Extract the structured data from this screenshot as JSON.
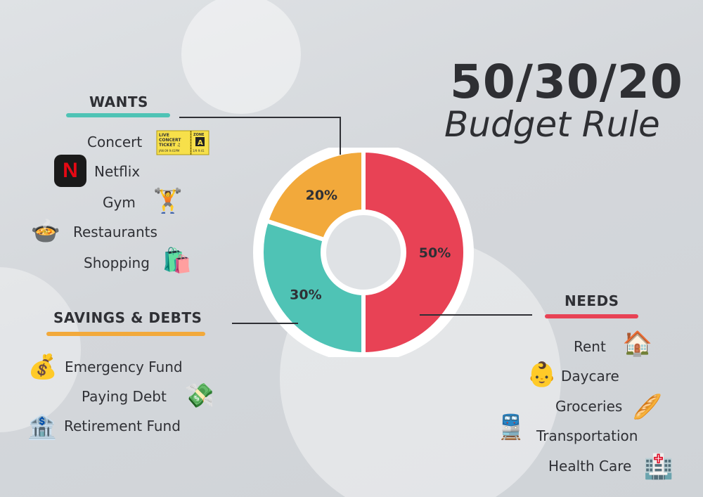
{
  "title": {
    "line1": "50/30/20",
    "line2": "Budget Rule"
  },
  "chart_data": {
    "type": "pie",
    "categories": [
      "NEEDS",
      "WANTS",
      "SAVINGS & DEBTS"
    ],
    "values": [
      50,
      30,
      20
    ],
    "labels": [
      "50%",
      "30%",
      "20%"
    ],
    "colors": [
      "#e84255",
      "#4fc3b5",
      "#f2a93b"
    ]
  },
  "wants": {
    "heading": "WANTS",
    "color": "#4fc3b5",
    "items": [
      "Concert",
      "Netflix",
      "Gym",
      "Restaurants",
      "Shopping"
    ],
    "ticket": {
      "l1": "LIVE",
      "l2": "CONCERT",
      "l3": "TICKET ♫",
      "date": "JAN 09  9:41PM",
      "zone": "ZONE",
      "zoneLetter": "A",
      "seat": "1/9  9:41"
    },
    "netflix_letter": "N"
  },
  "savings": {
    "heading": "SAVINGS & DEBTS",
    "color": "#f2a93b",
    "items": [
      "Emergency Fund",
      "Paying Debt",
      "Retirement Fund"
    ]
  },
  "needs": {
    "heading": "NEEDS",
    "color": "#e84255",
    "items": [
      "Rent",
      "Daycare",
      "Groceries",
      "Transportation",
      "Health Care"
    ]
  },
  "icons": {
    "concert": "concert-ticket-icon",
    "netflix": "netflix-icon",
    "gym": "weightlifter-icon",
    "restaurants": "food-bowl-icon",
    "shopping": "shopping-bags-icon",
    "emergency": "money-bag-icon",
    "debt": "flying-money-icon",
    "retirement": "bank-icon",
    "rent": "house-icon",
    "daycare": "baby-icon",
    "groceries": "bread-icon",
    "transportation": "train-icon",
    "healthcare": "hospital-icon"
  }
}
